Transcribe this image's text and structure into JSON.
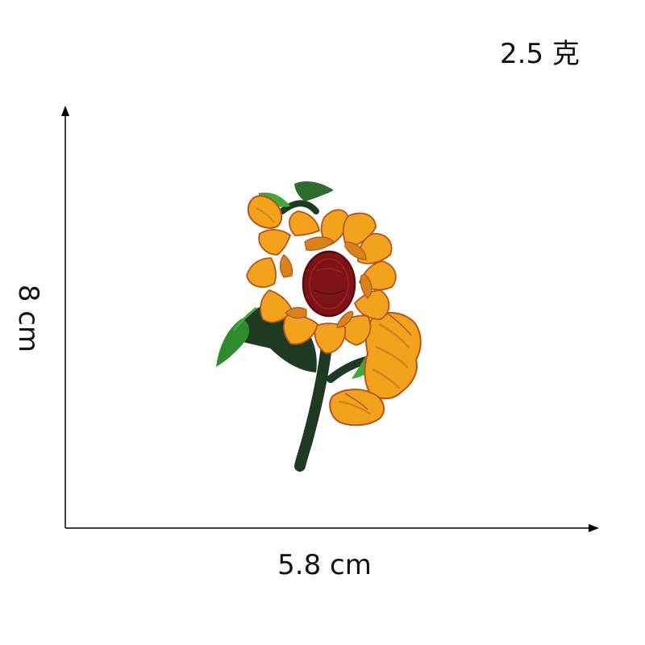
{
  "weight": {
    "label": "2.5 克"
  },
  "dimensions": {
    "width_label": "5.8 cm",
    "height_label": "8 cm"
  },
  "patch": {
    "subject": "embroidered sunflower patch",
    "colors": {
      "petal": "#F2A31B",
      "petal_shadow": "#D9821A",
      "petal_outline": "#B5541C",
      "center": "#7E1416",
      "center_outline": "#5A0C10",
      "leaf": "#2E8B2E",
      "leaf_light": "#3FA83A",
      "stem": "#1F3A22"
    }
  },
  "colors": {
    "background": "#FFFFFF",
    "axis": "#000000",
    "text": "#111111"
  }
}
